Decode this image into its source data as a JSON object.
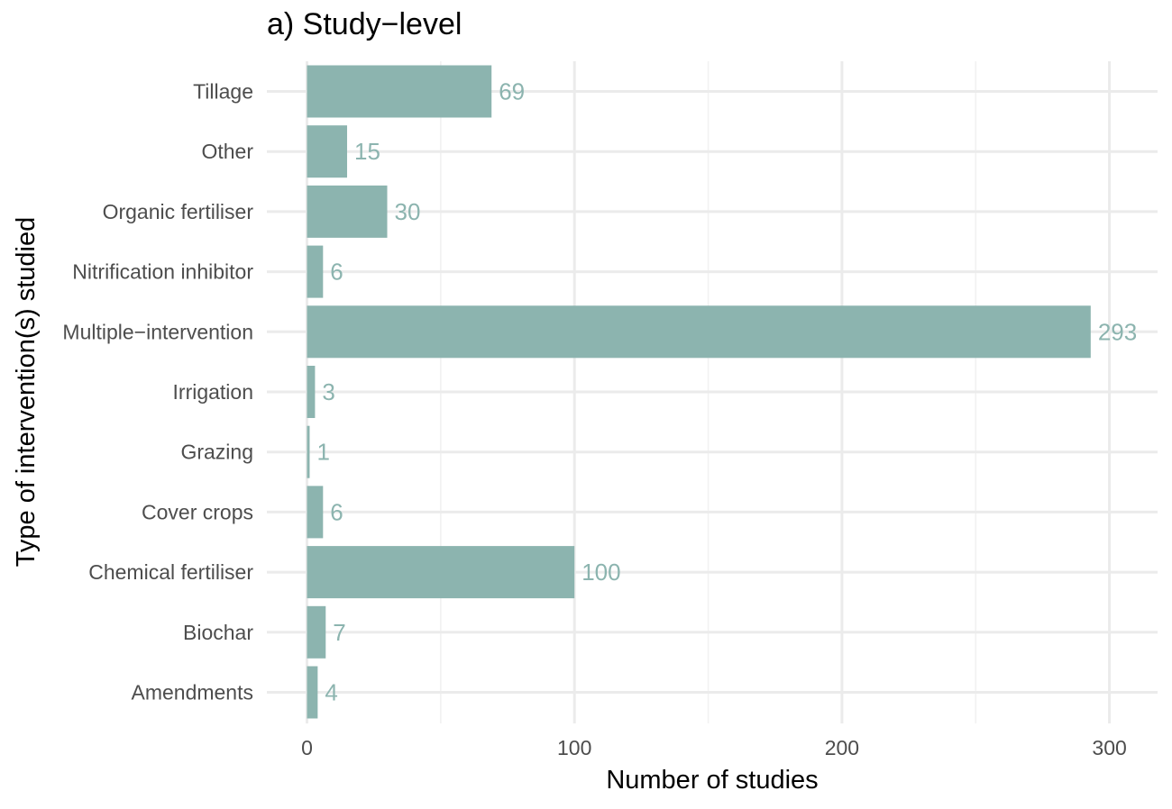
{
  "chart_data": {
    "type": "bar",
    "orientation": "horizontal",
    "title": "a) Study−level",
    "xlabel": "Number of studies",
    "ylabel": "Type of intervention(s) studied",
    "categories": [
      "Tillage",
      "Other",
      "Organic fertiliser",
      "Nitrification inhibitor",
      "Multiple−intervention",
      "Irrigation",
      "Grazing",
      "Cover crops",
      "Chemical fertiliser",
      "Biochar",
      "Amendments"
    ],
    "values": [
      69,
      15,
      30,
      6,
      293,
      3,
      1,
      6,
      100,
      7,
      4
    ],
    "data_labels": [
      "69",
      "15",
      "30",
      "6",
      "293",
      "3",
      "1",
      "6",
      "100",
      "7",
      "4"
    ],
    "xlim": [
      -15,
      318
    ],
    "xticks": [
      0,
      100,
      200,
      300
    ],
    "xtick_labels": [
      "0",
      "100",
      "200",
      "300"
    ],
    "grid": true,
    "legend": "none",
    "bar_color": "#8cb4af",
    "label_color": "#8cb4af"
  }
}
